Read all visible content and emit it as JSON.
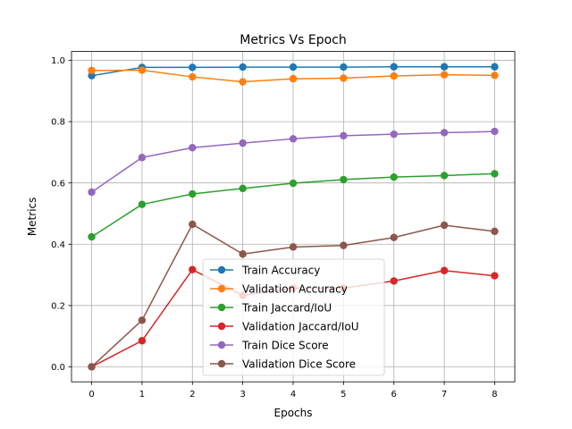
{
  "chart_data": {
    "type": "line",
    "title": "Metrics Vs Epoch",
    "xlabel": "Epochs",
    "ylabel": "Metrics",
    "x": [
      0,
      1,
      2,
      3,
      4,
      5,
      6,
      7,
      8
    ],
    "xlim": [
      -0.4,
      8.4
    ],
    "ylim": [
      -0.049,
      1.029
    ],
    "xticks": [
      "0",
      "1",
      "2",
      "3",
      "4",
      "5",
      "6",
      "7",
      "8"
    ],
    "yticks": [
      "0.0",
      "0.2",
      "0.4",
      "0.6",
      "0.8",
      "1.0"
    ],
    "grid": true,
    "legend_position": "center-bottom",
    "series": [
      {
        "name": "Train Accuracy",
        "color": "#1f77b4",
        "values": [
          0.95,
          0.977,
          0.977,
          0.978,
          0.978,
          0.978,
          0.979,
          0.979,
          0.979
        ]
      },
      {
        "name": "Validation Accuracy",
        "color": "#ff7f0e",
        "values": [
          0.967,
          0.968,
          0.946,
          0.93,
          0.94,
          0.942,
          0.949,
          0.953,
          0.951
        ]
      },
      {
        "name": "Train Jaccard/IoU",
        "color": "#2ca02c",
        "values": [
          0.424,
          0.53,
          0.564,
          0.582,
          0.599,
          0.611,
          0.619,
          0.624,
          0.63
        ]
      },
      {
        "name": "Validation Jaccard/IoU",
        "color": "#d62728",
        "values": [
          0.0,
          0.085,
          0.317,
          0.233,
          0.257,
          0.257,
          0.28,
          0.314,
          0.297
        ]
      },
      {
        "name": "Train Dice Score",
        "color": "#9467bd",
        "values": [
          0.57,
          0.683,
          0.715,
          0.73,
          0.744,
          0.754,
          0.759,
          0.764,
          0.768
        ]
      },
      {
        "name": "Validation Dice Score",
        "color": "#8c564b",
        "values": [
          0.0,
          0.152,
          0.465,
          0.368,
          0.391,
          0.396,
          0.422,
          0.462,
          0.442
        ]
      }
    ]
  }
}
